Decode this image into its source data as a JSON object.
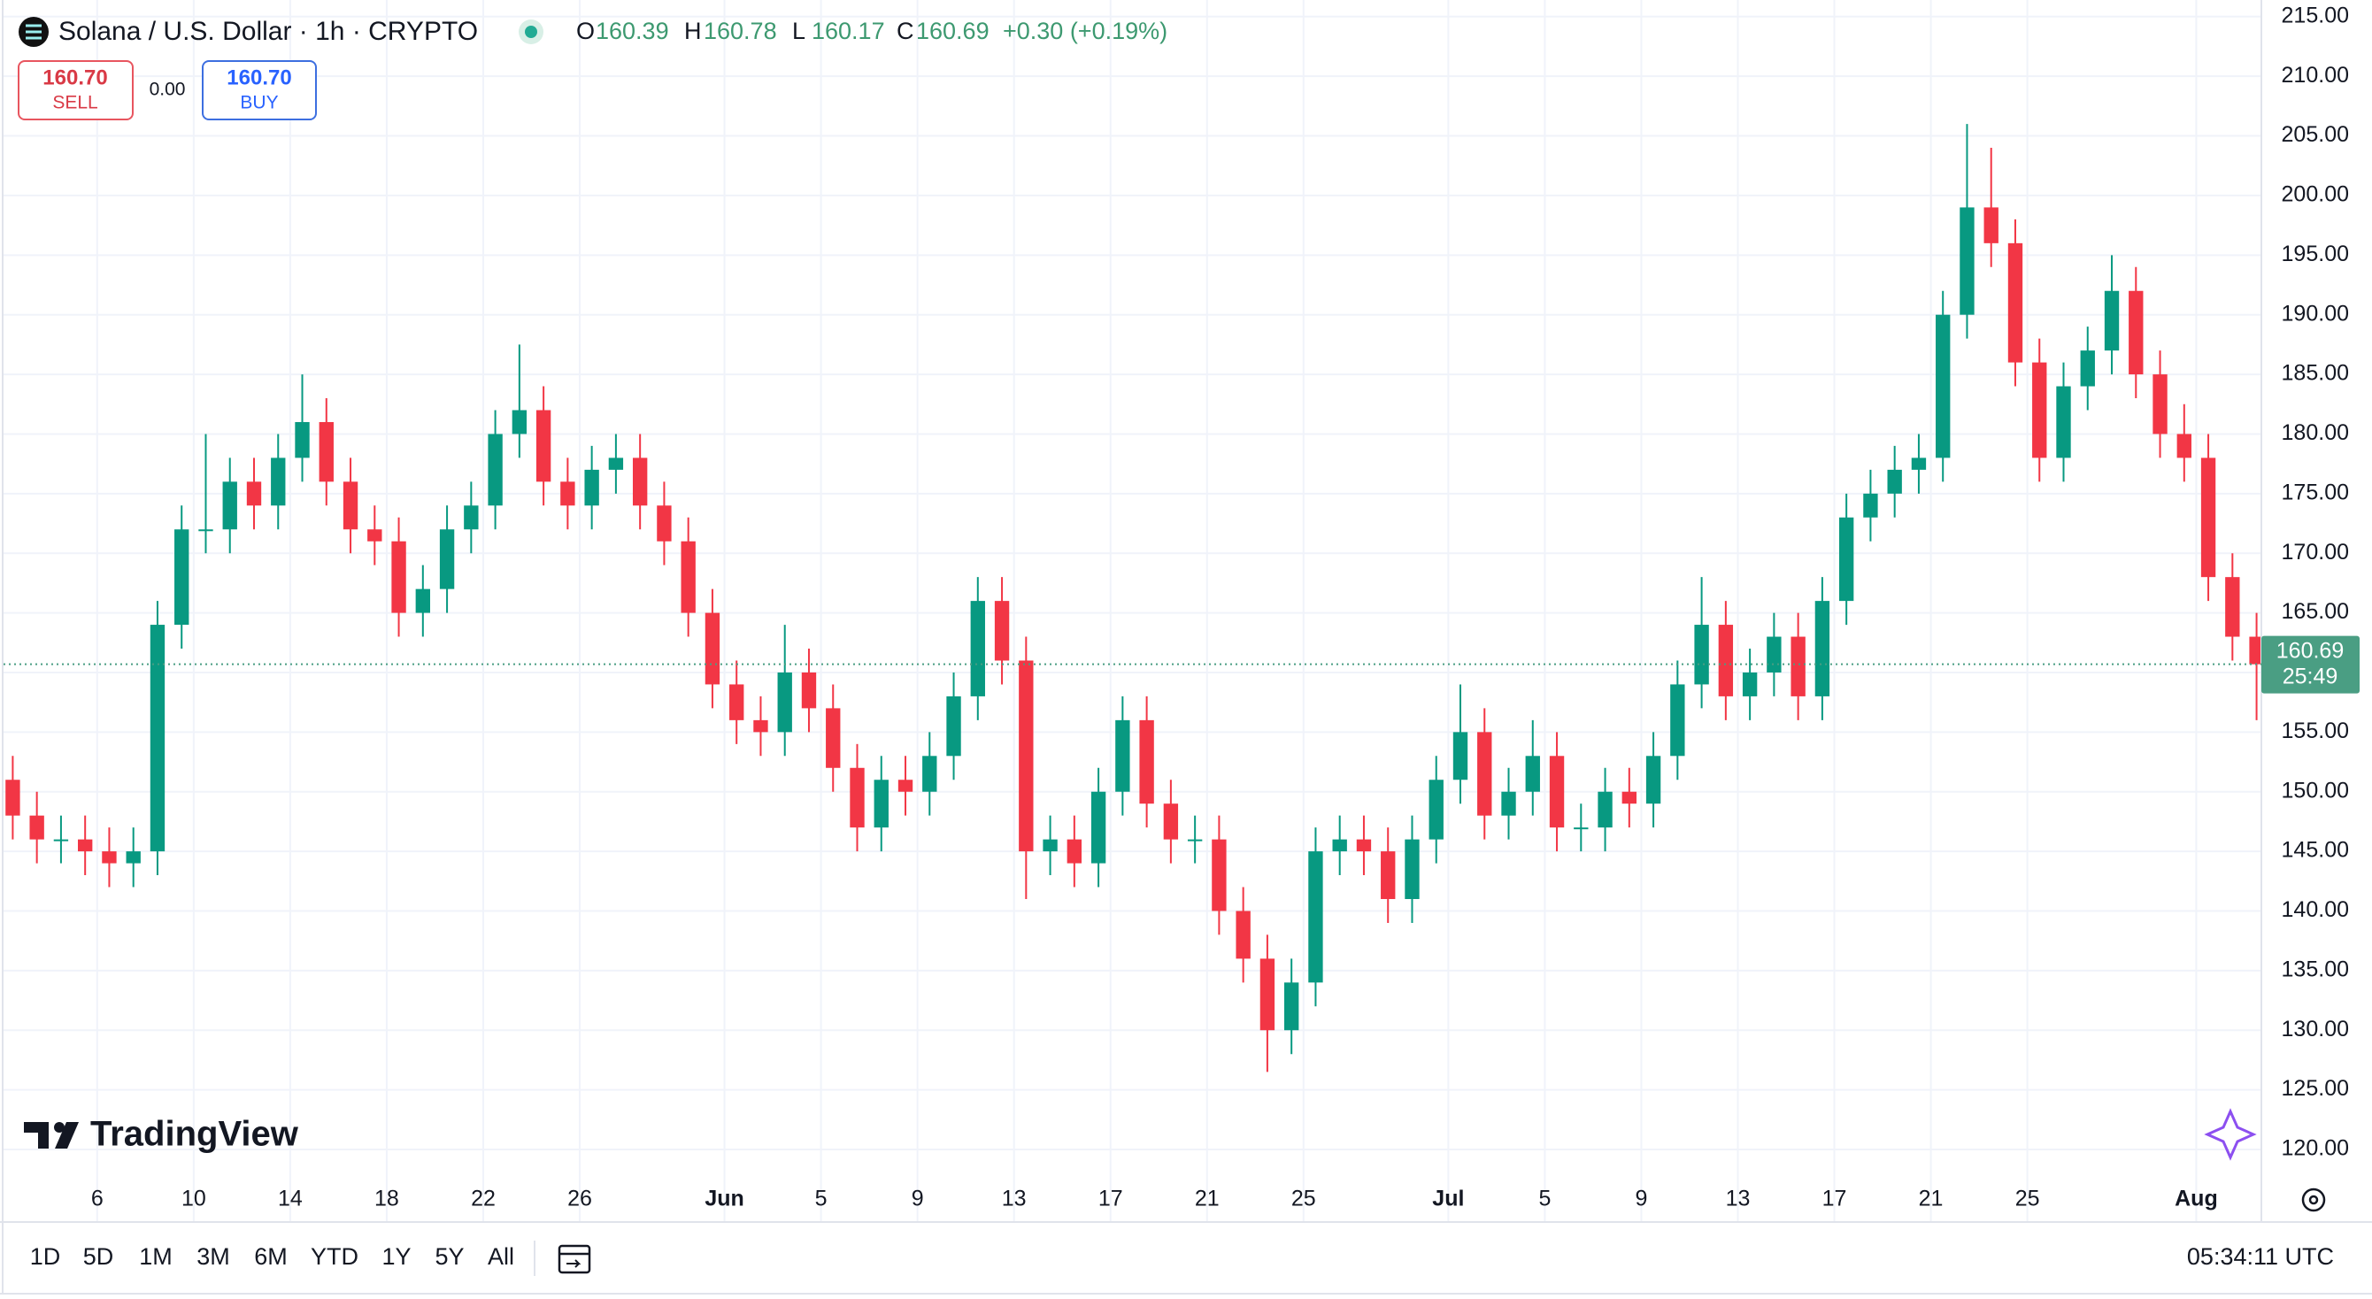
{
  "header": {
    "symbol": "Solana / U.S. Dollar · 1h · CRYPTO",
    "ohlc": [
      {
        "label": "O",
        "value": 160.39
      },
      {
        "label": "H",
        "value": 160.78
      },
      {
        "label": "L",
        "value": 160.17
      },
      {
        "label": "C",
        "value": 160.69
      }
    ],
    "change": "+0.30 (+0.19%)",
    "sell": {
      "price": "160.70",
      "label": "SELL"
    },
    "spread": "0.00",
    "buy": {
      "price": "160.70",
      "label": "BUY"
    }
  },
  "toolbar": {
    "ranges": [
      "1D",
      "5D",
      "1M",
      "3M",
      "6M",
      "YTD",
      "1Y",
      "5Y",
      "All"
    ],
    "time": "05:34:11 UTC"
  },
  "logo": "TradingView",
  "chart_data": {
    "type": "candlestick",
    "up_color": "#089981",
    "down_color": "#f23645",
    "categories": [
      "May 2",
      "May 3",
      "May 4",
      "May 5",
      "May 6",
      "May 7",
      "May 8",
      "May 9",
      "May 10",
      "May 11",
      "May 12",
      "May 13",
      "May 14",
      "May 15",
      "May 16",
      "May 17",
      "May 18",
      "May 19",
      "May 20",
      "May 21",
      "May 22",
      "May 23",
      "May 24",
      "May 25",
      "May 26",
      "May 27",
      "May 28",
      "May 29",
      "May 30",
      "May 31",
      "Jun 1",
      "Jun 2",
      "Jun 3",
      "Jun 4",
      "Jun 5",
      "Jun 6",
      "Jun 7",
      "Jun 8",
      "Jun 9",
      "Jun 10",
      "Jun 11",
      "Jun 12",
      "Jun 13",
      "Jun 14",
      "Jun 15",
      "Jun 16",
      "Jun 17",
      "Jun 18",
      "Jun 19",
      "Jun 20",
      "Jun 21",
      "Jun 22",
      "Jun 23",
      "Jun 24",
      "Jun 25",
      "Jun 26",
      "Jun 27",
      "Jun 28",
      "Jun 29",
      "Jun 30",
      "Jul 1",
      "Jul 2",
      "Jul 3",
      "Jul 4",
      "Jul 5",
      "Jul 6",
      "Jul 7",
      "Jul 8",
      "Jul 9",
      "Jul 10",
      "Jul 11",
      "Jul 12",
      "Jul 13",
      "Jul 14",
      "Jul 15",
      "Jul 16",
      "Jul 17",
      "Jul 18",
      "Jul 19",
      "Jul 20",
      "Jul 21",
      "Jul 22",
      "Jul 23",
      "Jul 24",
      "Jul 25",
      "Jul 26",
      "Jul 27",
      "Jul 28",
      "Jul 29",
      "Jul 30",
      "Jul 31",
      "Aug 1",
      "Aug 2",
      "Aug 3"
    ],
    "open": [
      151,
      148,
      146,
      146,
      145,
      144,
      145,
      164,
      172,
      172,
      176,
      174,
      178,
      181,
      176,
      172,
      171,
      165,
      167,
      172,
      174,
      180,
      182,
      176,
      174,
      177,
      178,
      174,
      171,
      165,
      159,
      156,
      155,
      160,
      157,
      152,
      147,
      151,
      150,
      153,
      158,
      166,
      161,
      145,
      146,
      144,
      150,
      156,
      149,
      146,
      146,
      140,
      136,
      130,
      134,
      145,
      146,
      145,
      141,
      146,
      151,
      155,
      148,
      150,
      153,
      147,
      147,
      150,
      149,
      153,
      159,
      164,
      158,
      160,
      163,
      158,
      166,
      173,
      175,
      177,
      178,
      190,
      199,
      196,
      186,
      178,
      184,
      187,
      192,
      185,
      180,
      178,
      168,
      163
    ],
    "high": [
      153,
      150,
      148,
      148,
      147,
      147,
      166,
      174,
      180,
      178,
      178,
      180,
      185,
      183,
      178,
      174,
      173,
      169,
      174,
      176,
      182,
      187.5,
      184,
      178,
      179,
      180,
      180,
      176,
      173,
      167,
      161,
      158,
      164,
      162,
      159,
      154,
      153,
      153,
      155,
      160,
      168,
      168,
      163,
      148,
      148,
      152,
      158,
      158,
      151,
      148,
      148,
      142,
      138,
      136,
      147,
      148,
      148,
      147,
      148,
      153,
      159,
      157,
      152,
      156,
      155,
      149,
      152,
      152,
      155,
      161,
      168,
      166,
      162,
      165,
      165,
      168,
      175,
      177,
      179,
      180,
      192,
      206,
      204,
      198,
      188,
      186,
      189,
      195,
      194,
      187,
      182.5,
      180,
      170,
      165
    ],
    "low": [
      146,
      144,
      144,
      143,
      142,
      142,
      143,
      162,
      170,
      170,
      172,
      172,
      176,
      174,
      170,
      169,
      163,
      163,
      165,
      170,
      172,
      178,
      174,
      172,
      172,
      175,
      172,
      169,
      163,
      157,
      154,
      153,
      153,
      155,
      150,
      145,
      145,
      148,
      148,
      151,
      156,
      159,
      141,
      143,
      142,
      142,
      148,
      147,
      144,
      144,
      138,
      134,
      126.5,
      128,
      132,
      143,
      143,
      139,
      139,
      144,
      149,
      146,
      146,
      148,
      145,
      145,
      145,
      147,
      147,
      151,
      157,
      156,
      156,
      158,
      156,
      156,
      164,
      171,
      173,
      175,
      176,
      188,
      194,
      184,
      176,
      176,
      182,
      185,
      183,
      178,
      176,
      166,
      161,
      156
    ],
    "close": [
      148,
      146,
      146,
      145,
      144,
      145,
      164,
      172,
      172,
      176,
      174,
      178,
      181,
      176,
      172,
      171,
      165,
      167,
      172,
      174,
      180,
      182,
      176,
      174,
      177,
      178,
      174,
      171,
      165,
      159,
      156,
      155,
      160,
      157,
      152,
      147,
      151,
      150,
      153,
      158,
      166,
      161,
      145,
      146,
      144,
      150,
      156,
      149,
      146,
      146,
      140,
      136,
      130,
      134,
      145,
      146,
      145,
      141,
      146,
      151,
      155,
      148,
      150,
      153,
      147,
      147,
      150,
      149,
      153,
      159,
      164,
      158,
      160,
      163,
      158,
      166,
      173,
      175,
      177,
      178,
      190,
      199,
      196,
      186,
      178,
      184,
      187,
      192,
      185,
      180,
      178,
      168,
      163,
      160.69
    ],
    "ylim": [
      120,
      215
    ],
    "yticks": [
      {
        "value": 120,
        "label": "120.00"
      },
      {
        "value": 125,
        "label": "125.00"
      },
      {
        "value": 130,
        "label": "130.00"
      },
      {
        "value": 135,
        "label": "135.00"
      },
      {
        "value": 140,
        "label": "140.00"
      },
      {
        "value": 145,
        "label": "145.00"
      },
      {
        "value": 150,
        "label": "150.00"
      },
      {
        "value": 155,
        "label": "155.00"
      },
      {
        "value": 160,
        "label": "160.00"
      },
      {
        "value": 165,
        "label": "165.00"
      },
      {
        "value": 170,
        "label": "170.00"
      },
      {
        "value": 175,
        "label": "175.00"
      },
      {
        "value": 180,
        "label": "180.00"
      },
      {
        "value": 185,
        "label": "185.00"
      },
      {
        "value": 190,
        "label": "190.00"
      },
      {
        "value": 195,
        "label": "195.00"
      },
      {
        "value": 200,
        "label": "200.00"
      },
      {
        "value": 205,
        "label": "205.00"
      },
      {
        "value": 210,
        "label": "210.00"
      },
      {
        "value": 215,
        "label": "215.00"
      }
    ],
    "xticks": [
      {
        "value": "May 6",
        "label": "6"
      },
      {
        "value": "May 10",
        "label": "10"
      },
      {
        "value": "May 14",
        "label": "14"
      },
      {
        "value": "May 18",
        "label": "18"
      },
      {
        "value": "May 22",
        "label": "22"
      },
      {
        "value": "May 26",
        "label": "26"
      },
      {
        "value": "Jun 1",
        "label": "Jun"
      },
      {
        "value": "Jun 5",
        "label": "5"
      },
      {
        "value": "Jun 9",
        "label": "9"
      },
      {
        "value": "Jun 13",
        "label": "13"
      },
      {
        "value": "Jun 17",
        "label": "17"
      },
      {
        "value": "Jun 21",
        "label": "21"
      },
      {
        "value": "Jun 25",
        "label": "25"
      },
      {
        "value": "Jul 1",
        "label": "Jul"
      },
      {
        "value": "Jul 5",
        "label": "5"
      },
      {
        "value": "Jul 9",
        "label": "9"
      },
      {
        "value": "Jul 13",
        "label": "13"
      },
      {
        "value": "Jul 17",
        "label": "17"
      },
      {
        "value": "Jul 21",
        "label": "21"
      },
      {
        "value": "Jul 25",
        "label": "25"
      },
      {
        "value": "Aug 1",
        "label": "Aug"
      }
    ],
    "grid": true,
    "last_price": {
      "value": 160.69,
      "label": "160.69",
      "countdown": "25:49"
    }
  }
}
